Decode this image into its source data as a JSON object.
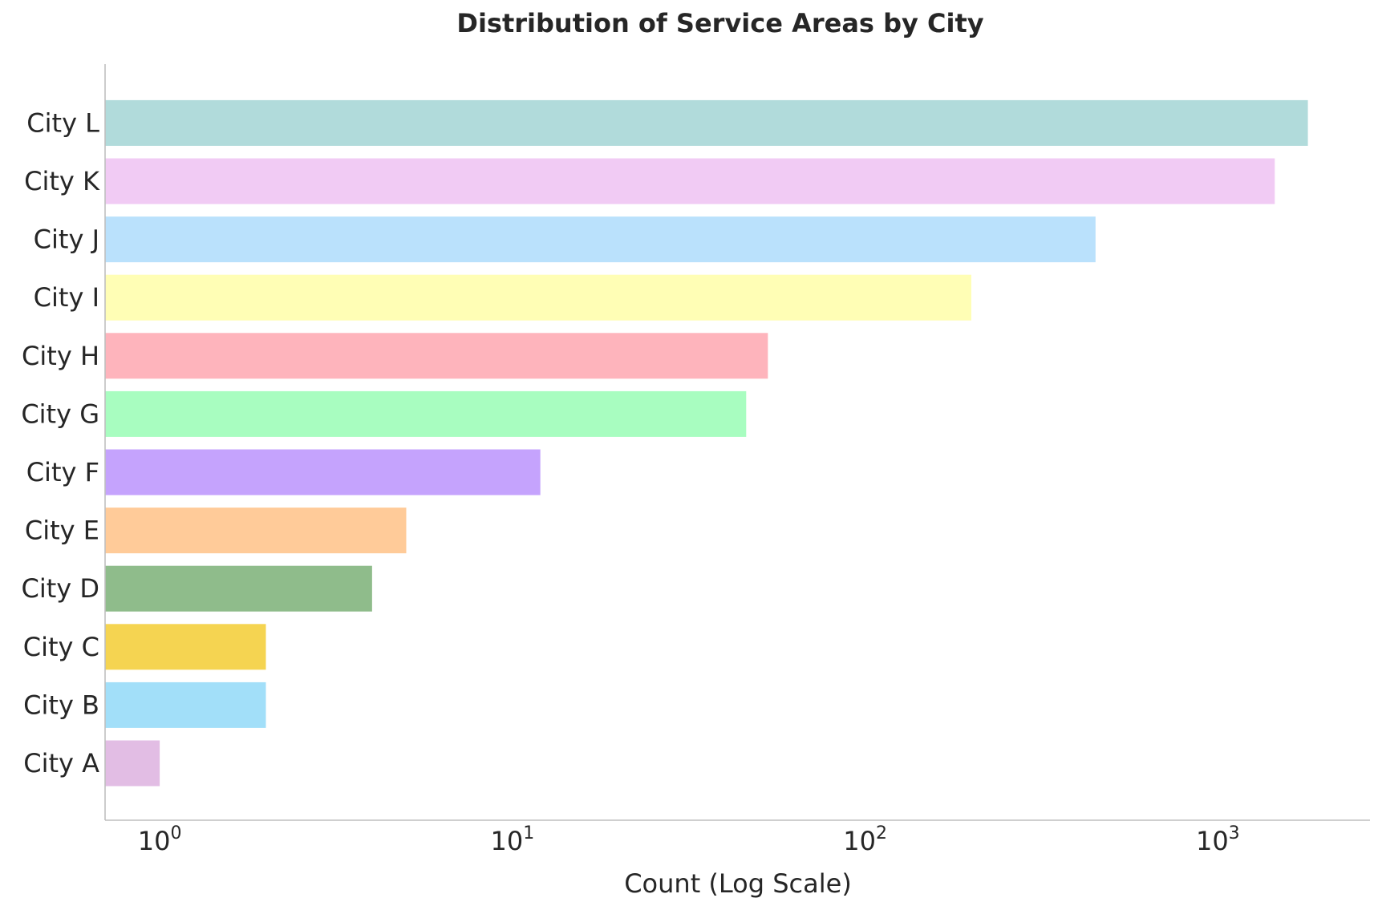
{
  "chart_data": {
    "type": "bar",
    "orientation": "horizontal",
    "title": "Distribution of Service Areas by City",
    "xlabel": "Count (Log Scale)",
    "ylabel": "",
    "xscale": "log",
    "xlim": [
      0.7,
      2700
    ],
    "xticks": [
      {
        "value": 1,
        "base": "10",
        "exp": "0"
      },
      {
        "value": 10,
        "base": "10",
        "exp": "1"
      },
      {
        "value": 100,
        "base": "10",
        "exp": "2"
      },
      {
        "value": 1000,
        "base": "10",
        "exp": "3"
      }
    ],
    "grid": false,
    "legend": false,
    "categories": [
      "City A",
      "City B",
      "City C",
      "City D",
      "City E",
      "City F",
      "City G",
      "City H",
      "City I",
      "City J",
      "City K",
      "City L"
    ],
    "values": [
      1,
      2,
      2,
      4,
      5,
      12,
      46,
      53,
      200,
      450,
      1450,
      1800
    ],
    "colors": [
      "#e2bde4",
      "#a2dff9",
      "#f5d451",
      "#8fbc8b",
      "#ffcb99",
      "#c5a3fd",
      "#a8fdc0",
      "#feb4bc",
      "#fffeb5",
      "#bae1fc",
      "#f1cbf4",
      "#b1dbdb"
    ]
  }
}
